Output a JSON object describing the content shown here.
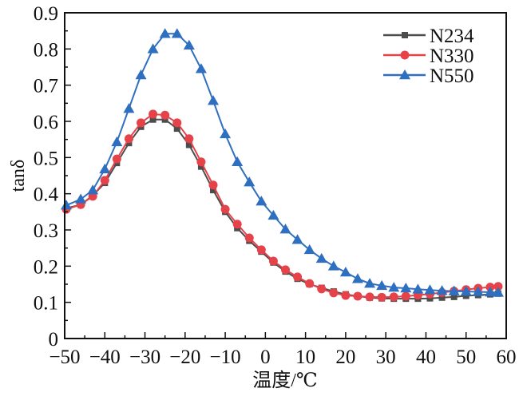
{
  "chart_data": {
    "type": "line",
    "title": "",
    "xlabel": "温度/℃",
    "ylabel": "tanδ",
    "xlim": [
      -50,
      60
    ],
    "ylim": [
      0,
      0.9
    ],
    "xticks": [
      -50,
      -40,
      -30,
      -20,
      -10,
      0,
      10,
      20,
      30,
      40,
      50,
      60
    ],
    "xtick_labels": [
      "−50",
      "−40",
      "−30",
      "−20",
      "−10",
      "0",
      "10",
      "20",
      "30",
      "40",
      "50",
      "60"
    ],
    "yticks": [
      0,
      0.1,
      0.2,
      0.3,
      0.4,
      0.5,
      0.6,
      0.7,
      0.8,
      0.9
    ],
    "ytick_labels": [
      "0",
      "0.1",
      "0.2",
      "0.3",
      "0.4",
      "0.5",
      "0.6",
      "0.7",
      "0.8",
      "0.9"
    ],
    "grid": false,
    "legend_position": "top-right",
    "x": [
      -49.6,
      -46,
      -43,
      -40,
      -37,
      -34,
      -31,
      -28,
      -25,
      -22,
      -19,
      -16,
      -13,
      -10,
      -7,
      -4,
      -1,
      2,
      5,
      8,
      11,
      14,
      17,
      20,
      23,
      26,
      29,
      32,
      35,
      38,
      41,
      44,
      47,
      50,
      53,
      56,
      58
    ],
    "series": [
      {
        "name": "N234",
        "color": "#4d4d4d",
        "marker": "square",
        "values": [
          0.36,
          0.37,
          0.395,
          0.43,
          0.485,
          0.54,
          0.585,
          0.605,
          0.605,
          0.58,
          0.535,
          0.475,
          0.41,
          0.35,
          0.305,
          0.27,
          0.24,
          0.21,
          0.185,
          0.165,
          0.15,
          0.14,
          0.13,
          0.122,
          0.117,
          0.113,
          0.111,
          0.11,
          0.11,
          0.11,
          0.111,
          0.113,
          0.115,
          0.118,
          0.12,
          0.122,
          0.124
        ]
      },
      {
        "name": "N330",
        "color": "#e5424a",
        "marker": "circle",
        "values": [
          0.357,
          0.37,
          0.393,
          0.437,
          0.496,
          0.552,
          0.596,
          0.62,
          0.617,
          0.596,
          0.552,
          0.488,
          0.424,
          0.357,
          0.316,
          0.278,
          0.245,
          0.214,
          0.19,
          0.17,
          0.152,
          0.137,
          0.126,
          0.119,
          0.117,
          0.115,
          0.114,
          0.115,
          0.117,
          0.12,
          0.123,
          0.127,
          0.131,
          0.135,
          0.139,
          0.142,
          0.144
        ]
      },
      {
        "name": "N550",
        "color": "#2f6fbf",
        "marker": "triangle",
        "values": [
          0.368,
          0.385,
          0.41,
          0.468,
          0.543,
          0.635,
          0.728,
          0.8,
          0.842,
          0.842,
          0.81,
          0.745,
          0.657,
          0.565,
          0.488,
          0.432,
          0.379,
          0.34,
          0.302,
          0.273,
          0.245,
          0.221,
          0.2,
          0.183,
          0.165,
          0.152,
          0.146,
          0.141,
          0.139,
          0.136,
          0.134,
          0.132,
          0.131,
          0.13,
          0.129,
          0.128,
          0.127
        ]
      }
    ]
  }
}
